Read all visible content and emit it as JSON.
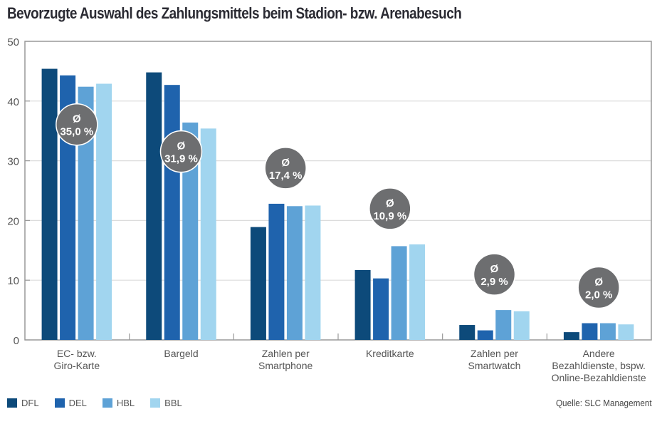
{
  "title": "Bevorzugte Auswahl des Zahlungsmittels beim Stadion- bzw. Arenabesuch",
  "source": "Quelle: SLC Management",
  "chart_data": {
    "type": "bar",
    "title": "Bevorzugte Auswahl des Zahlungsmittels beim Stadion- bzw. Arenabesuch",
    "xlabel": "",
    "ylabel": "",
    "ylim": [
      0,
      50
    ],
    "yticks": [
      0,
      10,
      20,
      30,
      40,
      50
    ],
    "grid": true,
    "legend_position": "bottom-left",
    "categories": [
      [
        "EC- bzw.",
        "Giro-Karte"
      ],
      [
        "Bargeld"
      ],
      [
        "Zahlen per",
        "Smartphone"
      ],
      [
        "Kreditkarte"
      ],
      [
        "Zahlen per",
        "Smartwatch"
      ],
      [
        "Andere",
        "Bezahldienste, bspw.",
        "Online-Bezahldienste"
      ]
    ],
    "series": [
      {
        "name": "DFL",
        "color": "#0d4a7a",
        "values": [
          45.4,
          44.8,
          18.9,
          11.7,
          2.5,
          1.3
        ]
      },
      {
        "name": "DEL",
        "color": "#1f63ad",
        "values": [
          44.3,
          42.7,
          22.8,
          10.3,
          1.6,
          2.8
        ]
      },
      {
        "name": "HBL",
        "color": "#5ea2d6",
        "values": [
          42.4,
          36.4,
          22.4,
          15.7,
          5.0,
          2.8
        ]
      },
      {
        "name": "BBL",
        "color": "#a1d5ef",
        "values": [
          42.9,
          35.4,
          22.5,
          16.0,
          4.8,
          2.6
        ]
      }
    ],
    "averages": [
      {
        "symbol": "Ø",
        "value": 35.0,
        "label": "35,0 %"
      },
      {
        "symbol": "Ø",
        "value": 31.9,
        "label": "31,9 %"
      },
      {
        "symbol": "Ø",
        "value": 17.4,
        "label": "17,4 %"
      },
      {
        "symbol": "Ø",
        "value": 10.9,
        "label": "10,9 %"
      },
      {
        "symbol": "Ø",
        "value": 2.9,
        "label": "2,9 %"
      },
      {
        "symbol": "Ø",
        "value": 2.0,
        "label": "2,0 %"
      }
    ],
    "average_badge_color": "#6d6e70"
  }
}
